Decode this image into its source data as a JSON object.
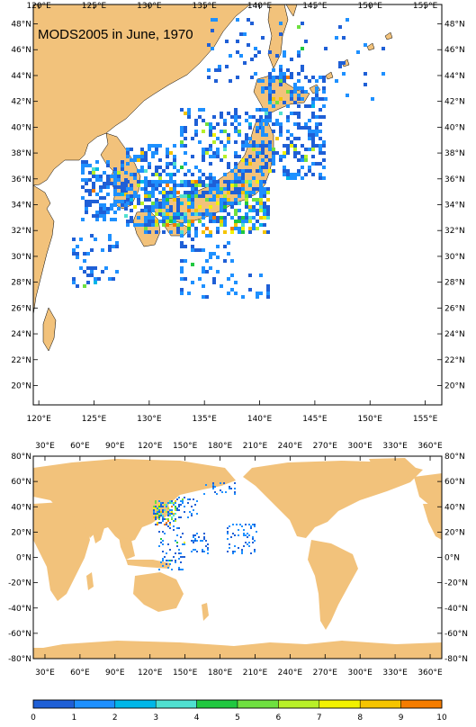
{
  "colors": {
    "land": "#f2c27b",
    "ocean": "#ffffff",
    "frame": "#000000"
  },
  "regional_map": {
    "title": "MODS2005 in June, 1970",
    "lon_ticks": [
      "120°E",
      "125°E",
      "130°E",
      "135°E",
      "140°E",
      "145°E",
      "150°E",
      "155°E"
    ],
    "lat_ticks": [
      "48°N",
      "46°N",
      "44°N",
      "42°N",
      "40°N",
      "38°N",
      "36°N",
      "34°N",
      "32°N",
      "30°N",
      "28°N",
      "26°N",
      "24°N",
      "22°N",
      "20°N"
    ],
    "lon_range": [
      119.5,
      156.5
    ],
    "lat_range": [
      18.5,
      49.5
    ]
  },
  "global_map": {
    "lon_ticks": [
      "30°E",
      "60°E",
      "90°E",
      "120°E",
      "150°E",
      "180°E",
      "210°E",
      "240°E",
      "270°E",
      "300°E",
      "330°E",
      "360°E"
    ],
    "lat_ticks": [
      "80°N",
      "60°N",
      "40°N",
      "20°N",
      "0°N",
      "-20°N",
      "-40°N",
      "-60°N",
      "-80°N"
    ],
    "lon_range": [
      20,
      370
    ],
    "lat_range": [
      -80,
      80
    ]
  },
  "colorbar": {
    "labels": [
      "0",
      "1",
      "2",
      "3",
      "4",
      "5",
      "6",
      "7",
      "8",
      "9",
      "10"
    ],
    "colors": [
      "#1f5fd6",
      "#1e90ff",
      "#00b7e8",
      "#4fe0d0",
      "#20c840",
      "#6ee040",
      "#b8f028",
      "#f2f200",
      "#f5c400",
      "#f57c00"
    ]
  }
}
